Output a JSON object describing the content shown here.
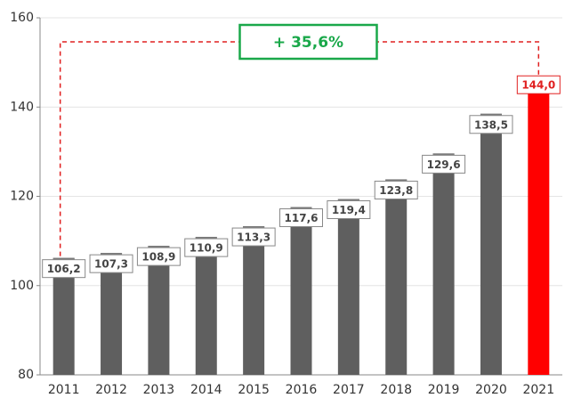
{
  "chart_data": {
    "type": "bar",
    "categories": [
      "2011",
      "2012",
      "2013",
      "2014",
      "2015",
      "2016",
      "2017",
      "2018",
      "2019",
      "2020",
      "2021"
    ],
    "values": [
      106.2,
      107.3,
      108.9,
      110.9,
      113.3,
      117.6,
      119.4,
      123.8,
      129.6,
      138.5,
      144.0
    ],
    "value_labels": [
      "106,2",
      "107,3",
      "108,9",
      "110,9",
      "113,3",
      "117,6",
      "119,4",
      "123,8",
      "129,6",
      "138,5",
      "144,0"
    ],
    "colors": [
      "#5f5f5f",
      "#5f5f5f",
      "#5f5f5f",
      "#5f5f5f",
      "#5f5f5f",
      "#5f5f5f",
      "#5f5f5f",
      "#5f5f5f",
      "#5f5f5f",
      "#5f5f5f",
      "#ff0000"
    ],
    "ylim": [
      80,
      160
    ],
    "yticks": [
      80,
      100,
      120,
      140,
      160
    ],
    "grid": true,
    "annotation": "+ 35,6%"
  }
}
